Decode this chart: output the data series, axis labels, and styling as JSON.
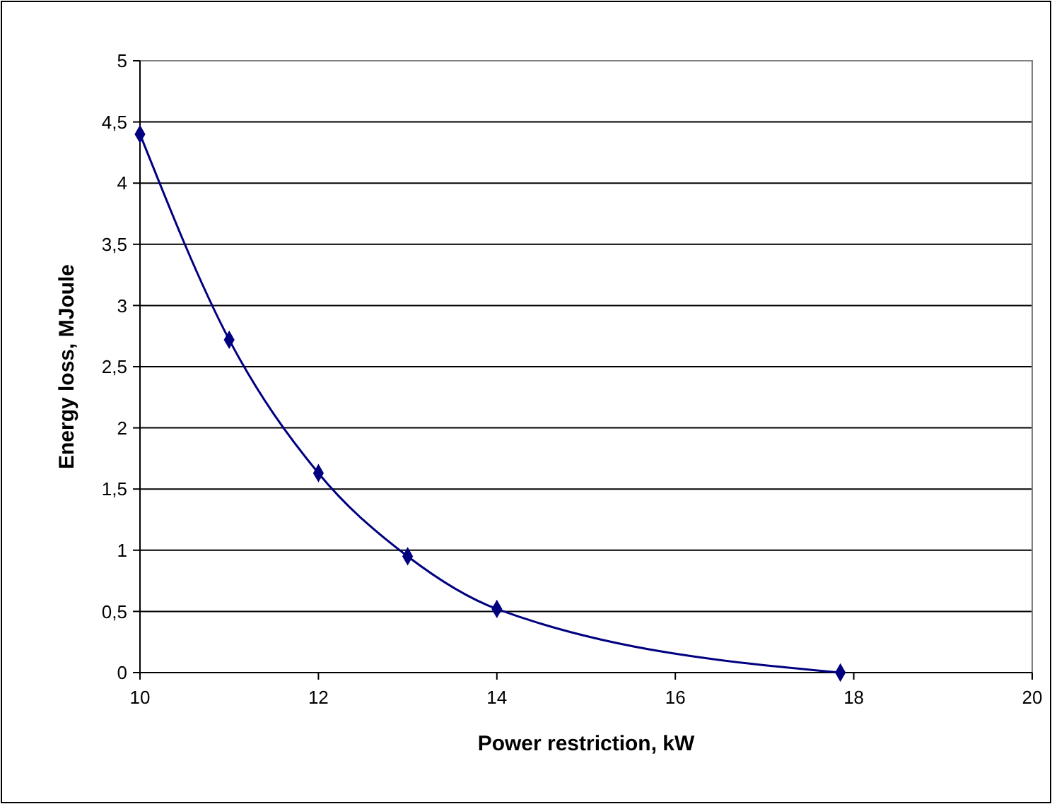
{
  "chart_data": {
    "type": "line",
    "xlabel": "Power restriction, kW",
    "ylabel": "Energy loss, MJoule",
    "x": [
      10,
      11,
      12,
      13,
      14,
      17.85
    ],
    "series": [
      {
        "color": "#000080",
        "values": [
          4.4,
          2.72,
          1.63,
          0.95,
          0.52,
          0
        ]
      }
    ],
    "xlim": [
      10,
      20
    ],
    "xticks": [
      10,
      12,
      14,
      16,
      18,
      20
    ],
    "ylim": [
      0,
      5
    ],
    "yticks": [
      0,
      {
        "value": 0.5,
        "label": "0,5"
      },
      1,
      {
        "value": 1.5,
        "label": "1,5"
      },
      2,
      {
        "value": 2.5,
        "label": "2,5"
      },
      3,
      {
        "value": 3.5,
        "label": "3,5"
      },
      4,
      {
        "value": 4.5,
        "label": "4,5"
      },
      5
    ],
    "grid": "y",
    "marker": "diamond",
    "line_style": "solid"
  }
}
